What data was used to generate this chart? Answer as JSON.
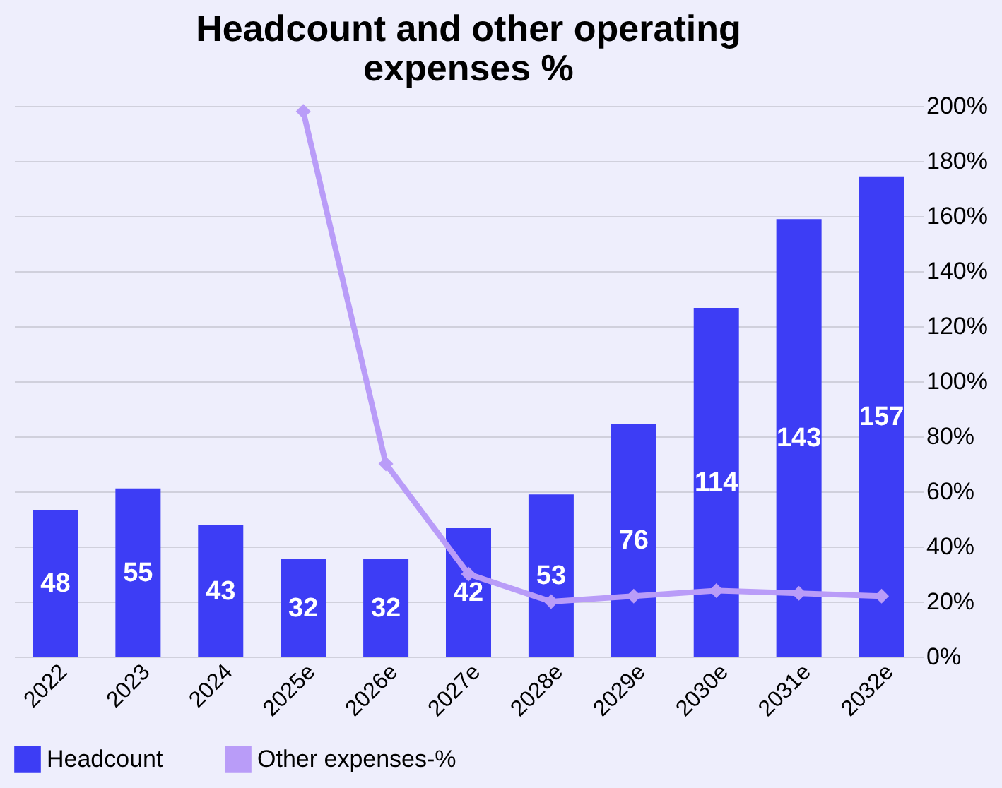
{
  "chart_data": {
    "type": "bar",
    "title": [
      "Headcount and other operating",
      "expenses %"
    ],
    "categories": [
      "2022",
      "2023",
      "2024",
      "2025e",
      "2026e",
      "2027e",
      "2028e",
      "2029e",
      "2030e",
      "2031e",
      "2032e"
    ],
    "series": [
      {
        "name": "Headcount",
        "color": "#3d3df5",
        "values": [
          48,
          55,
          43,
          32,
          32,
          42,
          53,
          76,
          114,
          143,
          157
        ],
        "value_labels": [
          "48",
          "55",
          "43",
          "32",
          "32",
          "42",
          "53",
          "76",
          "114",
          "143",
          "157"
        ]
      },
      {
        "name": "Other expenses-%",
        "type": "line",
        "axis": "y2",
        "color": "#b99cf8",
        "marker": "diamond",
        "values": [
          null,
          null,
          null,
          198,
          70,
          30,
          20,
          22,
          24,
          23,
          22
        ]
      }
    ],
    "ylim": [
      0,
      180
    ],
    "y2lim": [
      0,
      200
    ],
    "y2ticks": [
      {
        "value": 0,
        "label": "0%"
      },
      {
        "value": 20,
        "label": "20%"
      },
      {
        "value": 40,
        "label": "40%"
      },
      {
        "value": 60,
        "label": "60%"
      },
      {
        "value": 80,
        "label": "80%"
      },
      {
        "value": 100,
        "label": "100%"
      },
      {
        "value": 120,
        "label": "120%"
      },
      {
        "value": 140,
        "label": "140%"
      },
      {
        "value": 160,
        "label": "160%"
      },
      {
        "value": 180,
        "label": "180%"
      },
      {
        "value": 200,
        "label": "200%"
      }
    ],
    "grid": "y",
    "legend": "bottom"
  }
}
